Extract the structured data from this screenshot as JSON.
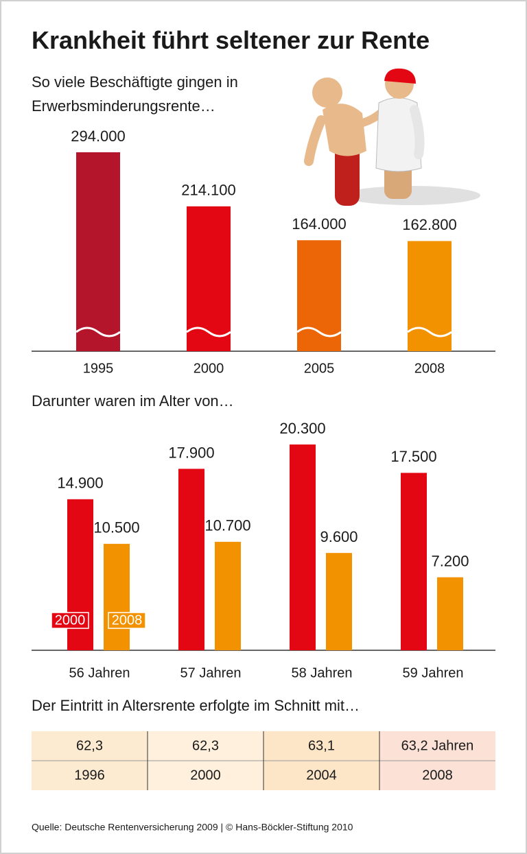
{
  "title": "Krankheit führt seltener zur Rente",
  "chart_data": [
    {
      "type": "bar",
      "subtitle": "So viele Beschäftigte gingen in Erwerbsminderungsrente…",
      "categories": [
        "1995",
        "2000",
        "2005",
        "2008"
      ],
      "values": [
        294000,
        214100,
        164000,
        162800
      ],
      "value_labels": [
        "294.000",
        "214.100",
        "164.000",
        "162.800"
      ],
      "colors": [
        "#b5152b",
        "#e30613",
        "#ec6608",
        "#f39200"
      ]
    },
    {
      "type": "bar",
      "subtitle": "Darunter waren im Alter von…",
      "categories": [
        "56 Jahren",
        "57 Jahren",
        "58 Jahren",
        "59 Jahren"
      ],
      "series": [
        {
          "name": "2000",
          "color": "#e30613",
          "values": [
            14900,
            17900,
            20300,
            17500
          ],
          "value_labels": [
            "14.900",
            "17.900",
            "20.300",
            "17.500"
          ]
        },
        {
          "name": "2008",
          "color": "#f39200",
          "values": [
            10500,
            10700,
            9600,
            7200
          ],
          "value_labels": [
            "10.500",
            "10.700",
            "9.600",
            "7.200"
          ]
        }
      ]
    }
  ],
  "table": {
    "caption": "Der Eintritt in Altersrente erfolgte im Schnitt mit…",
    "rows": [
      [
        "62,3",
        "62,3",
        "63,1",
        "63,2 Jahren"
      ],
      [
        "1996",
        "2000",
        "2004",
        "2008"
      ]
    ]
  },
  "source": "Quelle: Deutsche Rentenversicherung 2009 | © Hans-Böckler-Stiftung 2010"
}
